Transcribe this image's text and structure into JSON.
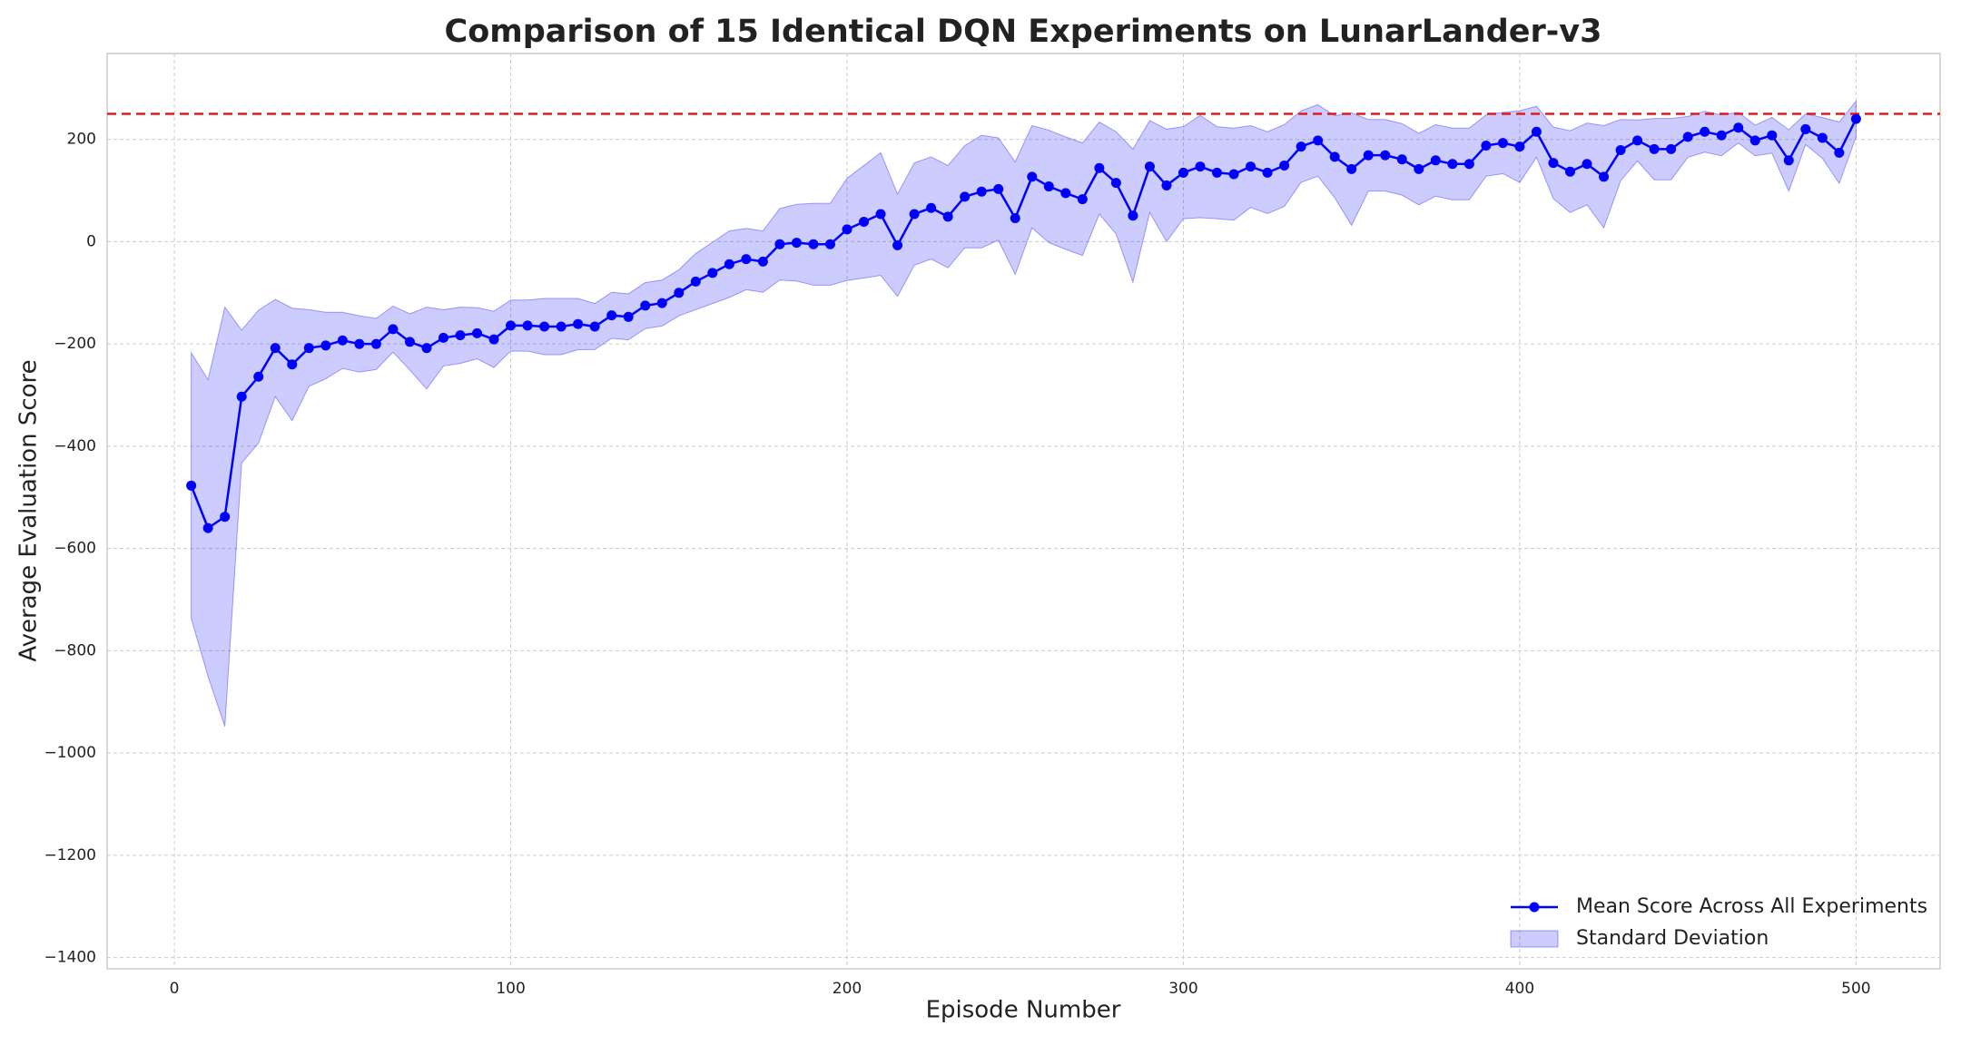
{
  "chart_data": {
    "type": "line",
    "title": "Comparison of 15 Identical DQN Experiments on LunarLander-v3",
    "x_label": "Episode Number",
    "y_label": "Average Evaluation Score",
    "x": [
      5,
      10,
      15,
      20,
      25,
      30,
      35,
      40,
      45,
      50,
      55,
      60,
      65,
      70,
      75,
      80,
      85,
      90,
      95,
      100,
      105,
      110,
      115,
      120,
      125,
      130,
      135,
      140,
      145,
      150,
      155,
      160,
      165,
      170,
      175,
      180,
      185,
      190,
      195,
      200,
      205,
      210,
      215,
      220,
      225,
      230,
      235,
      240,
      245,
      250,
      255,
      260,
      265,
      270,
      275,
      280,
      285,
      290,
      295,
      300,
      305,
      310,
      315,
      320,
      325,
      330,
      335,
      340,
      345,
      350,
      355,
      360,
      365,
      370,
      375,
      380,
      385,
      390,
      395,
      400,
      405,
      410,
      415,
      420,
      425,
      430,
      435,
      440,
      445,
      450,
      455,
      460,
      465,
      470,
      475,
      480,
      485,
      490,
      495,
      500
    ],
    "series": [
      {
        "name": "Mean Score Across All Experiments",
        "color": "#0000ff",
        "values": [
          -477,
          -560,
          -538,
          -303,
          -264,
          -208,
          -240,
          -208,
          -203,
          -193,
          -200,
          -200,
          -171,
          -196,
          -208,
          -188,
          -183,
          -179,
          -191,
          -164,
          -164,
          -166,
          -166,
          -161,
          -166,
          -144,
          -147,
          -125,
          -120,
          -100,
          -78,
          -61,
          -44,
          -34,
          -39,
          -5,
          -2,
          -5,
          -5,
          24,
          39,
          54,
          -7,
          54,
          66,
          49,
          88,
          98,
          103,
          46,
          127,
          108,
          95,
          83,
          144,
          115,
          51,
          147,
          110,
          135,
          147,
          135,
          132,
          147,
          135,
          149,
          186,
          198,
          166,
          142,
          169,
          169,
          161,
          142,
          159,
          152,
          152,
          188,
          193,
          186,
          215,
          154,
          137,
          152,
          127,
          179,
          198,
          181,
          181,
          205,
          215,
          208,
          223,
          198,
          208,
          159,
          220,
          203,
          174,
          240
        ]
      },
      {
        "name": "Standard Deviation",
        "color": "rgba(0,0,255,0.2)",
        "band_of": 0,
        "values": [
          260,
          290,
          410,
          130,
          130,
          95,
          110,
          75,
          65,
          55,
          55,
          50,
          45,
          55,
          80,
          55,
          55,
          50,
          55,
          50,
          50,
          55,
          55,
          50,
          45,
          45,
          45,
          45,
          45,
          45,
          55,
          60,
          65,
          60,
          60,
          70,
          75,
          80,
          80,
          100,
          110,
          120,
          100,
          100,
          100,
          100,
          100,
          110,
          100,
          110,
          100,
          110,
          110,
          110,
          90,
          100,
          130,
          90,
          110,
          90,
          100,
          90,
          90,
          80,
          80,
          80,
          70,
          70,
          80,
          110,
          70,
          70,
          70,
          70,
          70,
          70,
          70,
          60,
          60,
          70,
          50,
          70,
          80,
          80,
          100,
          60,
          40,
          60,
          60,
          40,
          40,
          40,
          30,
          30,
          35,
          60,
          30,
          40,
          60,
          35
        ]
      }
    ],
    "reference_line": {
      "value": 250,
      "color": "#e31a1c"
    },
    "xlim": [
      -20,
      525
    ],
    "ylim": [
      -1422,
      368
    ],
    "xticks": [
      0,
      100,
      200,
      300,
      400,
      500
    ],
    "yticks": [
      {
        "value": -1400,
        "label": "−1400"
      },
      {
        "value": -1200,
        "label": "−1200"
      },
      {
        "value": -1000,
        "label": "−1000"
      },
      {
        "value": -800,
        "label": "−800"
      },
      {
        "value": -600,
        "label": "−600"
      },
      {
        "value": -400,
        "label": "−400"
      },
      {
        "value": -200,
        "label": "−200"
      },
      0,
      200
    ],
    "grid": true,
    "legend": "lower right"
  }
}
